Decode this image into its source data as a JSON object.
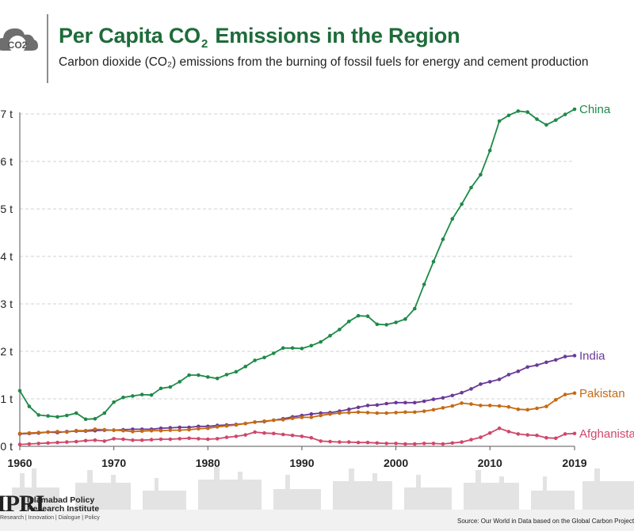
{
  "header": {
    "logo_text": "CO2",
    "title_main": "Per Capita CO",
    "title_sub": "2",
    "title_rest": " Emissions in the Region",
    "subtitle": "Carbon dioxide (CO₂) emissions from the burning of fossil fuels for energy and cement production"
  },
  "chart_data": {
    "type": "line",
    "title": "Per Capita CO2 Emissions in the Region",
    "subtitle": "Carbon dioxide (CO₂) emissions from the burning of fossil fuels for energy and cement production",
    "xlabel": "",
    "ylabel": "",
    "xlim": [
      1960,
      2019
    ],
    "ylim": [
      0,
      7
    ],
    "x_ticks": [
      "1960",
      "1970",
      "1980",
      "1990",
      "2000",
      "2010",
      "2019"
    ],
    "y_ticks": [
      "0 t",
      "1 t",
      "2 t",
      "3 t",
      "4 t",
      "5 t",
      "6 t",
      "7 t"
    ],
    "grid": "horizontal dashed",
    "legend": "labels at line ends (right)",
    "x": [
      1960,
      1961,
      1962,
      1963,
      1964,
      1965,
      1966,
      1967,
      1968,
      1969,
      1970,
      1971,
      1972,
      1973,
      1974,
      1975,
      1976,
      1977,
      1978,
      1979,
      1980,
      1981,
      1982,
      1983,
      1984,
      1985,
      1986,
      1987,
      1988,
      1989,
      1990,
      1991,
      1992,
      1993,
      1994,
      1995,
      1996,
      1997,
      1998,
      1999,
      2000,
      2001,
      2002,
      2003,
      2004,
      2005,
      2006,
      2007,
      2008,
      2009,
      2010,
      2011,
      2012,
      2013,
      2014,
      2015,
      2016,
      2017,
      2018,
      2019
    ],
    "series": [
      {
        "name": "China",
        "color": "#1e8a48",
        "values": [
          1.17,
          0.84,
          0.66,
          0.64,
          0.62,
          0.65,
          0.7,
          0.57,
          0.58,
          0.7,
          0.93,
          1.03,
          1.06,
          1.09,
          1.08,
          1.22,
          1.25,
          1.36,
          1.5,
          1.5,
          1.46,
          1.43,
          1.51,
          1.57,
          1.68,
          1.81,
          1.87,
          1.96,
          2.07,
          2.07,
          2.06,
          2.12,
          2.2,
          2.33,
          2.46,
          2.63,
          2.75,
          2.74,
          2.57,
          2.56,
          2.61,
          2.68,
          2.9,
          3.41,
          3.89,
          4.36,
          4.79,
          5.1,
          5.45,
          5.72,
          6.23,
          6.85,
          6.97,
          7.06,
          7.04,
          6.89,
          6.77,
          6.87,
          6.99,
          7.1
        ]
      },
      {
        "name": "India",
        "color": "#6a3a96",
        "values": [
          0.26,
          0.27,
          0.28,
          0.3,
          0.29,
          0.31,
          0.32,
          0.32,
          0.33,
          0.34,
          0.34,
          0.35,
          0.36,
          0.36,
          0.36,
          0.38,
          0.39,
          0.4,
          0.4,
          0.42,
          0.42,
          0.44,
          0.45,
          0.46,
          0.48,
          0.51,
          0.52,
          0.55,
          0.58,
          0.62,
          0.65,
          0.68,
          0.7,
          0.71,
          0.74,
          0.78,
          0.82,
          0.86,
          0.87,
          0.9,
          0.92,
          0.92,
          0.92,
          0.95,
          0.99,
          1.02,
          1.07,
          1.13,
          1.21,
          1.31,
          1.36,
          1.41,
          1.51,
          1.58,
          1.67,
          1.71,
          1.77,
          1.82,
          1.89,
          1.91
        ]
      },
      {
        "name": "Pakistan",
        "color": "#c56a14",
        "values": [
          0.27,
          0.28,
          0.29,
          0.3,
          0.31,
          0.3,
          0.33,
          0.33,
          0.36,
          0.35,
          0.34,
          0.33,
          0.31,
          0.32,
          0.33,
          0.33,
          0.34,
          0.34,
          0.35,
          0.37,
          0.38,
          0.41,
          0.43,
          0.45,
          0.48,
          0.51,
          0.53,
          0.55,
          0.56,
          0.59,
          0.61,
          0.61,
          0.65,
          0.68,
          0.7,
          0.71,
          0.72,
          0.71,
          0.7,
          0.7,
          0.71,
          0.72,
          0.72,
          0.74,
          0.77,
          0.81,
          0.85,
          0.91,
          0.89,
          0.86,
          0.86,
          0.85,
          0.83,
          0.78,
          0.77,
          0.8,
          0.84,
          0.98,
          1.09,
          1.12
        ]
      },
      {
        "name": "Afghanistan",
        "color": "#d0476a",
        "values": [
          0.04,
          0.05,
          0.06,
          0.07,
          0.08,
          0.09,
          0.1,
          0.12,
          0.13,
          0.11,
          0.16,
          0.15,
          0.13,
          0.13,
          0.14,
          0.15,
          0.15,
          0.16,
          0.17,
          0.16,
          0.15,
          0.16,
          0.19,
          0.21,
          0.24,
          0.3,
          0.28,
          0.27,
          0.25,
          0.23,
          0.21,
          0.18,
          0.11,
          0.1,
          0.09,
          0.09,
          0.08,
          0.08,
          0.07,
          0.06,
          0.06,
          0.05,
          0.05,
          0.06,
          0.06,
          0.05,
          0.07,
          0.09,
          0.14,
          0.19,
          0.28,
          0.38,
          0.31,
          0.26,
          0.24,
          0.23,
          0.18,
          0.17,
          0.26,
          0.27
        ]
      }
    ]
  },
  "footer": {
    "org_mark": "IPRI",
    "org_name_line1": "Islamabad Policy",
    "org_name_line2": "Research Institute",
    "tagline": "Research | Innovation | Dialogue | Policy",
    "source": "Source: Our World in Data based on the Global Carbon Project"
  }
}
